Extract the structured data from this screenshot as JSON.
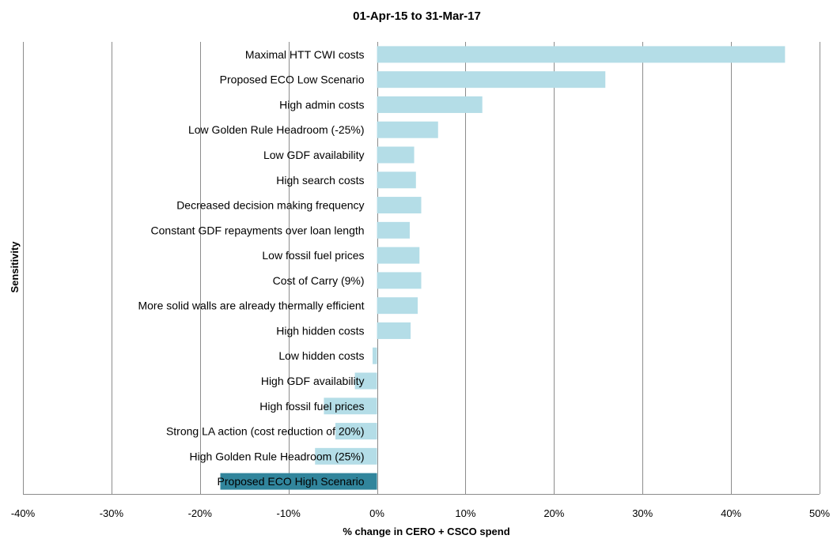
{
  "chart_data": {
    "type": "bar",
    "orientation": "horizontal",
    "title": "01-Apr-15  to 31-Mar-17",
    "xlabel": "% change in CERO + CSCO spend",
    "ylabel": "Sensitivity",
    "xlim": [
      -0.4,
      0.5
    ],
    "xticks": [
      -0.4,
      -0.3,
      -0.2,
      -0.1,
      0,
      0.1,
      0.2,
      0.3,
      0.4,
      0.5
    ],
    "xtick_labels": [
      "-40%",
      "-30%",
      "-20%",
      "-10%",
      "0%",
      "10%",
      "20%",
      "30%",
      "40%",
      "50%"
    ],
    "grid": true,
    "legend": "none",
    "categories": [
      "Maximal HTT CWI costs",
      "Proposed ECO Low Scenario",
      "High admin costs",
      "Low Golden Rule Headroom (-25%)",
      "Low GDF availability",
      "High search costs",
      "Decreased decision making frequency",
      "Constant GDF repayments over loan length",
      "Low fossil fuel prices",
      "Cost of Carry (9%)",
      "More solid walls are already thermally efficient",
      "High hidden costs",
      "Low hidden costs",
      "High GDF availability",
      "High fossil fuel prices",
      "Strong LA action (cost reduction of 20%)",
      "High Golden Rule Headroom (25%)",
      "Proposed ECO High Scenario"
    ],
    "values": [
      0.461,
      0.258,
      0.119,
      0.069,
      0.042,
      0.044,
      0.05,
      0.037,
      0.048,
      0.05,
      0.046,
      0.038,
      -0.005,
      -0.025,
      -0.06,
      -0.047,
      -0.07,
      -0.177
    ],
    "colors": [
      "#b4dde7",
      "#b4dde7",
      "#b4dde7",
      "#b4dde7",
      "#b4dde7",
      "#b4dde7",
      "#b4dde7",
      "#b4dde7",
      "#b4dde7",
      "#b4dde7",
      "#b4dde7",
      "#b4dde7",
      "#b4dde7",
      "#b4dde7",
      "#b4dde7",
      "#b4dde7",
      "#b4dde7",
      "#31859c"
    ]
  }
}
